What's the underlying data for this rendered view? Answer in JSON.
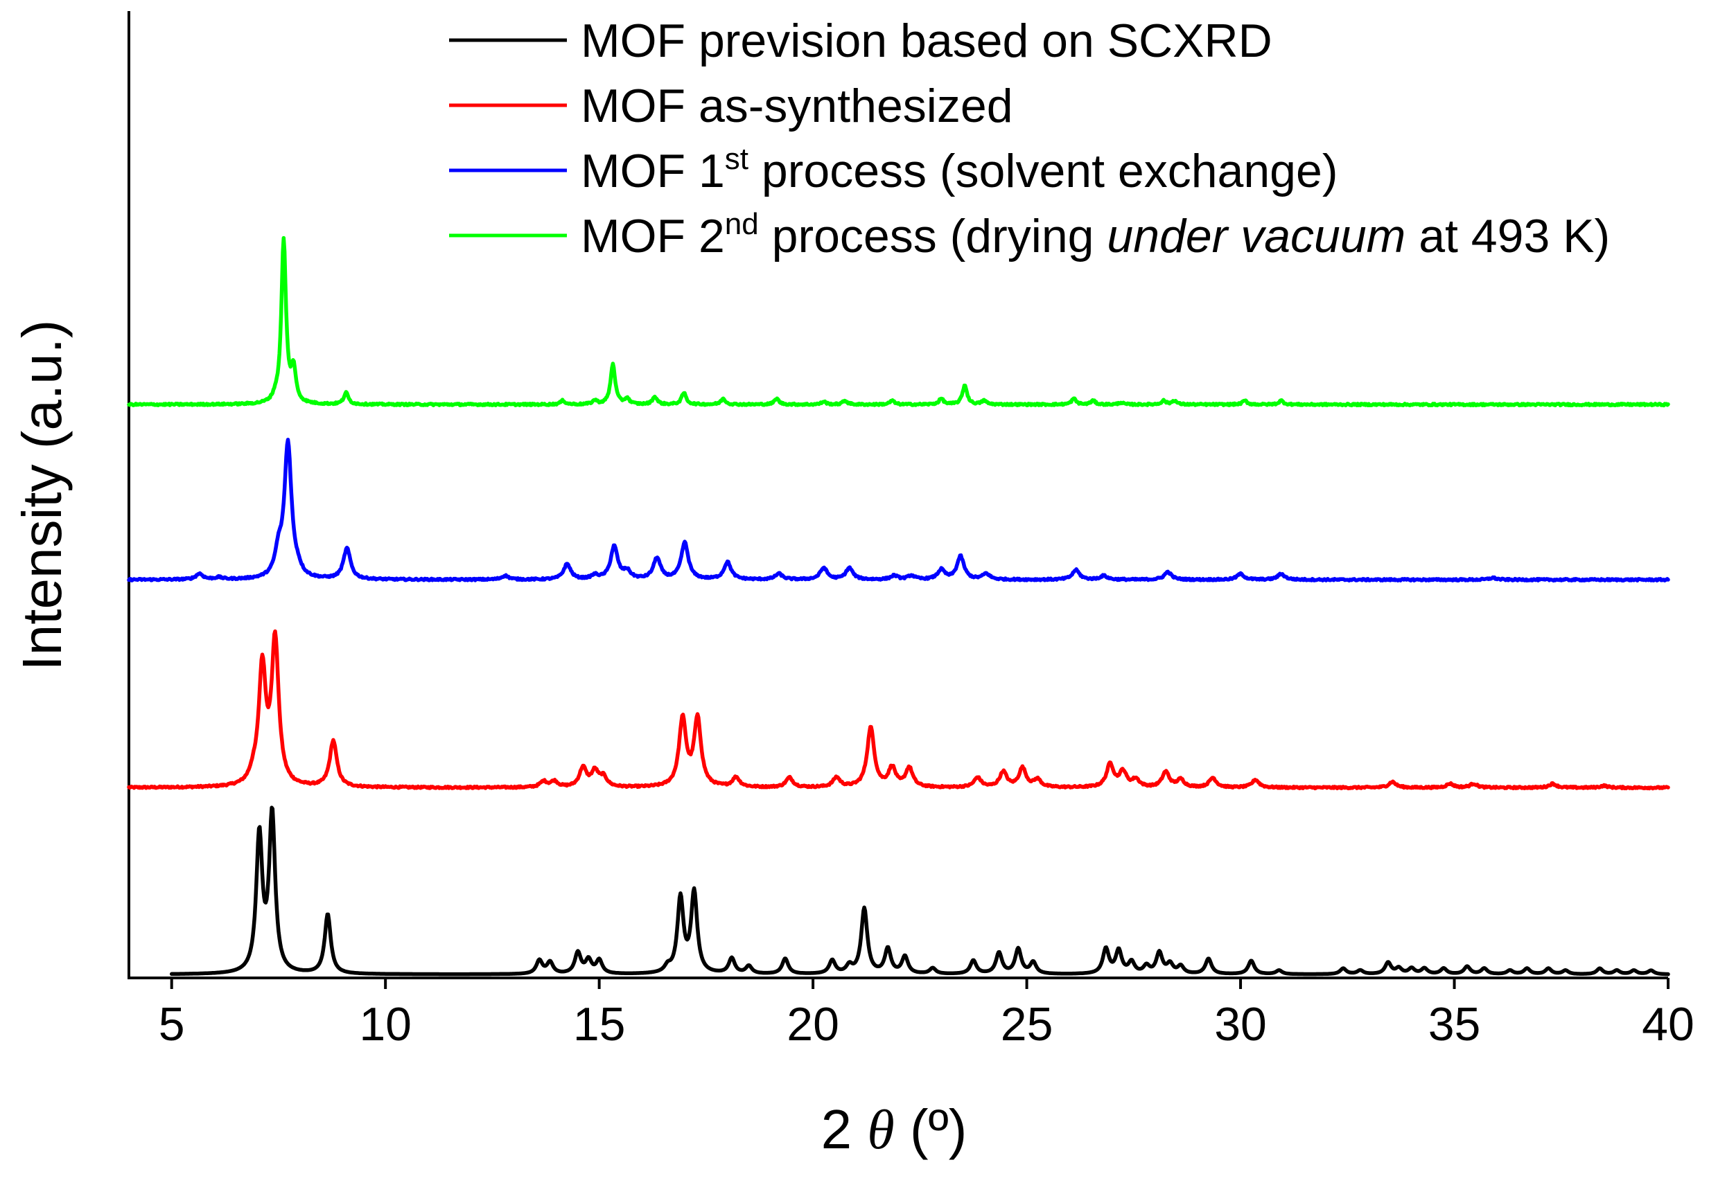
{
  "chart_data": {
    "type": "line",
    "title": "",
    "xlabel": {
      "prefix": "2 ",
      "symbol": "θ",
      "suffix": " (º)"
    },
    "ylabel": "Intensity (a.u.)",
    "xlim": [
      4,
      40
    ],
    "xticks": [
      5,
      10,
      15,
      20,
      25,
      30,
      35,
      40
    ],
    "yticks_visible": false,
    "grid": false,
    "legend_position": "top-right",
    "series": [
      {
        "id": "scxrd",
        "name_parts": [
          {
            "t": "MOF prevision based on SCXRD"
          }
        ],
        "color": "#000000",
        "offset": 0,
        "width": 0.085,
        "peaks": [
          [
            7.05,
            71
          ],
          [
            7.35,
            82
          ],
          [
            8.65,
            31
          ],
          [
            13.6,
            7
          ],
          [
            13.85,
            6
          ],
          [
            14.5,
            11
          ],
          [
            14.75,
            7
          ],
          [
            15.0,
            7
          ],
          [
            16.6,
            3
          ],
          [
            16.9,
            39
          ],
          [
            17.22,
            42
          ],
          [
            18.1,
            8
          ],
          [
            18.5,
            4
          ],
          [
            19.35,
            8
          ],
          [
            20.45,
            7
          ],
          [
            20.85,
            4
          ],
          [
            21.2,
            34
          ],
          [
            21.75,
            13
          ],
          [
            22.15,
            9
          ],
          [
            22.8,
            3
          ],
          [
            23.75,
            7
          ],
          [
            24.35,
            11
          ],
          [
            24.8,
            13
          ],
          [
            25.15,
            6
          ],
          [
            26.85,
            13
          ],
          [
            27.15,
            12
          ],
          [
            27.45,
            6
          ],
          [
            27.8,
            4
          ],
          [
            28.1,
            11
          ],
          [
            28.35,
            5
          ],
          [
            28.6,
            4
          ],
          [
            29.25,
            8
          ],
          [
            30.25,
            7
          ],
          [
            30.9,
            2
          ],
          [
            32.4,
            3
          ],
          [
            32.8,
            2
          ],
          [
            33.45,
            6
          ],
          [
            33.7,
            3
          ],
          [
            34.0,
            3
          ],
          [
            34.3,
            3
          ],
          [
            34.75,
            3
          ],
          [
            35.3,
            4
          ],
          [
            35.7,
            3
          ],
          [
            36.3,
            2
          ],
          [
            36.7,
            3
          ],
          [
            37.2,
            3
          ],
          [
            37.6,
            2
          ],
          [
            38.4,
            3
          ],
          [
            38.8,
            2
          ],
          [
            39.2,
            2
          ],
          [
            39.6,
            2
          ]
        ]
      },
      {
        "id": "as-synth",
        "name_parts": [
          {
            "t": "MOF as-synthesized"
          }
        ],
        "color": "#ff0000",
        "offset": 97,
        "width": 0.1,
        "peaks": [
          [
            6.9,
            4
          ],
          [
            7.12,
            61
          ],
          [
            7.42,
            75
          ],
          [
            8.78,
            24
          ],
          [
            13.7,
            3
          ],
          [
            13.95,
            3
          ],
          [
            14.62,
            10
          ],
          [
            14.9,
            8
          ],
          [
            15.1,
            5
          ],
          [
            16.95,
            35
          ],
          [
            17.3,
            35
          ],
          [
            18.2,
            5
          ],
          [
            19.45,
            5
          ],
          [
            20.55,
            5
          ],
          [
            21.35,
            31
          ],
          [
            21.85,
            10
          ],
          [
            22.25,
            10
          ],
          [
            23.85,
            5
          ],
          [
            24.45,
            8
          ],
          [
            24.9,
            10
          ],
          [
            25.25,
            4
          ],
          [
            26.95,
            12
          ],
          [
            27.25,
            8
          ],
          [
            27.55,
            4
          ],
          [
            28.25,
            8
          ],
          [
            28.6,
            4
          ],
          [
            29.35,
            5
          ],
          [
            30.35,
            4
          ],
          [
            33.55,
            3
          ],
          [
            34.9,
            2
          ],
          [
            35.45,
            2
          ],
          [
            37.3,
            2
          ],
          [
            38.5,
            1
          ]
        ]
      },
      {
        "id": "solvent-exchange",
        "name_parts": [
          {
            "t": "MOF 1"
          },
          {
            "t": "st",
            "sup": true
          },
          {
            "t": " process (solvent exchange)"
          }
        ],
        "color": "#0000ff",
        "offset": 205,
        "width": 0.1,
        "peaks": [
          [
            5.65,
            3
          ],
          [
            6.1,
            1
          ],
          [
            7.5,
            12
          ],
          [
            7.72,
            70
          ],
          [
            7.95,
            3
          ],
          [
            9.1,
            16
          ],
          [
            12.8,
            2
          ],
          [
            14.25,
            8
          ],
          [
            14.9,
            2
          ],
          [
            15.35,
            17
          ],
          [
            15.65,
            4
          ],
          [
            16.35,
            11
          ],
          [
            17.0,
            19
          ],
          [
            18.0,
            9
          ],
          [
            19.2,
            3
          ],
          [
            20.25,
            6
          ],
          [
            20.85,
            6
          ],
          [
            21.9,
            2
          ],
          [
            22.3,
            2
          ],
          [
            23.0,
            5
          ],
          [
            23.45,
            12
          ],
          [
            24.05,
            3
          ],
          [
            26.15,
            5
          ],
          [
            26.8,
            2
          ],
          [
            28.3,
            4
          ],
          [
            30.0,
            3
          ],
          [
            30.95,
            3
          ],
          [
            35.9,
            1
          ]
        ]
      },
      {
        "id": "drying",
        "name_parts": [
          {
            "t": "MOF 2"
          },
          {
            "t": "nd",
            "sup": true
          },
          {
            "t": " process (drying "
          },
          {
            "t": "under vacuum",
            "italic": true
          },
          {
            "t": " at 493 K)"
          }
        ],
        "color": "#00ff00",
        "offset": 296,
        "width": 0.065,
        "peaks": [
          [
            7.42,
            2
          ],
          [
            7.62,
            85
          ],
          [
            7.85,
            17
          ],
          [
            9.08,
            6
          ],
          [
            14.15,
            2
          ],
          [
            14.9,
            2
          ],
          [
            15.32,
            21
          ],
          [
            15.65,
            3
          ],
          [
            16.3,
            4
          ],
          [
            16.98,
            6
          ],
          [
            17.9,
            3
          ],
          [
            19.15,
            3
          ],
          [
            20.25,
            1.5
          ],
          [
            20.75,
            2
          ],
          [
            21.85,
            2
          ],
          [
            23.0,
            3
          ],
          [
            23.55,
            10
          ],
          [
            24.0,
            2
          ],
          [
            26.1,
            3
          ],
          [
            26.55,
            2
          ],
          [
            27.2,
            1
          ],
          [
            28.2,
            2
          ],
          [
            28.45,
            2
          ],
          [
            30.1,
            2
          ],
          [
            30.95,
            2
          ]
        ]
      }
    ]
  }
}
